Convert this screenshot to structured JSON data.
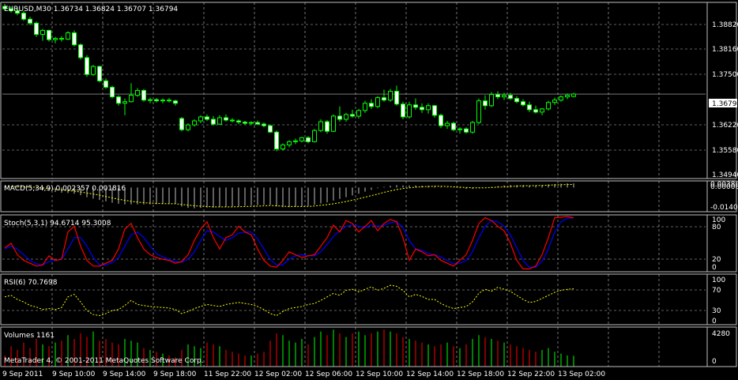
{
  "colors": {
    "background": "#000000",
    "grid": "#c0c0c0",
    "frame": "#c0c0c0",
    "text": "#ffffff",
    "bull": "#00ff00",
    "bear": "#ffffff",
    "macd_hist": "#c0c0c0",
    "macd_signal": "#ffff00",
    "stoch_main": "#ff0000",
    "stoch_signal": "#0000ff",
    "rsi": "#ffff00",
    "vol_up": "#00ff00",
    "vol_down": "#ff0000",
    "price_marker_bg": "#ffffff",
    "price_marker_text": "#000000"
  },
  "main": {
    "header": "EURUSD,M30  1.36734 1.36824 1.36707 1.36794",
    "current_price_label": "1.36794",
    "y_labels": [
      "1.38820",
      "1.38160",
      "1.37500",
      "1.36794",
      "1.36220",
      "1.35580",
      "1.34940"
    ]
  },
  "macd": {
    "header": "MACD(5,34,9) 0.002357 0.001816",
    "y_labels": [
      "0.00380",
      "0.00000",
      "-0.01400"
    ]
  },
  "stoch": {
    "header": "Stoch(5,3,1) 94.6714 95.3008",
    "y_labels": [
      "100",
      "80",
      "20",
      "0"
    ]
  },
  "rsi": {
    "header": "RSI(6) 70.7698",
    "y_labels": [
      "100",
      "70",
      "30",
      "0"
    ]
  },
  "volumes": {
    "header": "Volumes 1161",
    "y_labels": [
      "4280",
      "0"
    ]
  },
  "footer": {
    "copyright": "MetaTrader 4, © 2001-2011 MetaQuotes Software Corp."
  },
  "time_axis": {
    "labels": [
      "9 Sep 2011",
      "9 Sep 10:00",
      "9 Sep 14:00",
      "9 Sep 18:00",
      "11 Sep 22:00",
      "12 Sep 02:00",
      "12 Sep 06:00",
      "12 Sep 10:00",
      "12 Sep 14:00",
      "12 Sep 18:00",
      "12 Sep 22:00",
      "13 Sep 02:00"
    ]
  },
  "chart_data": {
    "type": "candlestick",
    "symbol": "EURUSD",
    "timeframe": "M30",
    "ylim": [
      1.3468,
      1.3908
    ],
    "candles": [
      [
        1.3898,
        1.3904,
        1.3888,
        1.3892
      ],
      [
        1.3892,
        1.3898,
        1.3882,
        1.3887
      ],
      [
        1.3887,
        1.3894,
        1.3876,
        1.3881
      ],
      [
        1.3881,
        1.3886,
        1.3862,
        1.3866
      ],
      [
        1.3866,
        1.3872,
        1.3851,
        1.3856
      ],
      [
        1.3856,
        1.386,
        1.3822,
        1.3828
      ],
      [
        1.3828,
        1.3842,
        1.3812,
        1.3838
      ],
      [
        1.3838,
        1.384,
        1.381,
        1.3815
      ],
      [
        1.3815,
        1.3822,
        1.3806,
        1.3818
      ],
      [
        1.3818,
        1.3824,
        1.381,
        1.3816
      ],
      [
        1.3816,
        1.3836,
        1.3814,
        1.3832
      ],
      [
        1.3832,
        1.3838,
        1.3798,
        1.3802
      ],
      [
        1.3802,
        1.3806,
        1.3765,
        1.377
      ],
      [
        1.377,
        1.3776,
        1.3722,
        1.3728
      ],
      [
        1.3728,
        1.3752,
        1.3724,
        1.3748
      ],
      [
        1.3748,
        1.375,
        1.3708,
        1.3712
      ],
      [
        1.3712,
        1.3718,
        1.3692,
        1.3696
      ],
      [
        1.3696,
        1.37,
        1.3668,
        1.3672
      ],
      [
        1.3672,
        1.3676,
        1.365,
        1.3656
      ],
      [
        1.3656,
        1.3668,
        1.3626,
        1.366
      ],
      [
        1.366,
        1.3706,
        1.3658,
        1.3676
      ],
      [
        1.3676,
        1.3694,
        1.3672,
        1.3688
      ],
      [
        1.3688,
        1.3692,
        1.366,
        1.3664
      ],
      [
        1.3664,
        1.367,
        1.3656,
        1.3665
      ],
      [
        1.3665,
        1.3669,
        1.3658,
        1.3662
      ],
      [
        1.3662,
        1.3668,
        1.3656,
        1.3664
      ],
      [
        1.3664,
        1.3669,
        1.3658,
        1.3662
      ],
      [
        1.3662,
        1.3665,
        1.365,
        1.3656
      ],
      [
        1.3618,
        1.3622,
        1.3586,
        1.359
      ],
      [
        1.359,
        1.3606,
        1.3586,
        1.3602
      ],
      [
        1.3602,
        1.3616,
        1.3598,
        1.3612
      ],
      [
        1.3612,
        1.3626,
        1.3606,
        1.3622
      ],
      [
        1.3622,
        1.3628,
        1.3612,
        1.3616
      ],
      [
        1.3616,
        1.3624,
        1.36,
        1.3604
      ],
      [
        1.3604,
        1.3626,
        1.3602,
        1.362
      ],
      [
        1.362,
        1.3628,
        1.361,
        1.3614
      ],
      [
        1.3614,
        1.3619,
        1.3608,
        1.3612
      ],
      [
        1.3612,
        1.3616,
        1.3604,
        1.3609
      ],
      [
        1.3609,
        1.3612,
        1.3603,
        1.3606
      ],
      [
        1.3606,
        1.3611,
        1.3601,
        1.3608
      ],
      [
        1.3608,
        1.3613,
        1.3602,
        1.3604
      ],
      [
        1.3604,
        1.3608,
        1.3596,
        1.36
      ],
      [
        1.36,
        1.3603,
        1.3582,
        1.3584
      ],
      [
        1.3584,
        1.3588,
        1.3536,
        1.3542
      ],
      [
        1.3542,
        1.3556,
        1.3538,
        1.3552
      ],
      [
        1.3552,
        1.3564,
        1.3546,
        1.356
      ],
      [
        1.356,
        1.3568,
        1.3554,
        1.3562
      ],
      [
        1.3562,
        1.3572,
        1.3558,
        1.357
      ],
      [
        1.357,
        1.3574,
        1.3556,
        1.356
      ],
      [
        1.356,
        1.3592,
        1.3558,
        1.3588
      ],
      [
        1.3588,
        1.3616,
        1.3584,
        1.361
      ],
      [
        1.361,
        1.3614,
        1.358,
        1.3586
      ],
      [
        1.3586,
        1.3628,
        1.3584,
        1.3624
      ],
      [
        1.3624,
        1.3648,
        1.361,
        1.3616
      ],
      [
        1.3616,
        1.3632,
        1.361,
        1.3628
      ],
      [
        1.3628,
        1.364,
        1.362,
        1.3624
      ],
      [
        1.3624,
        1.3642,
        1.3618,
        1.3638
      ],
      [
        1.3638,
        1.3662,
        1.3632,
        1.3656
      ],
      [
        1.3656,
        1.3666,
        1.3642,
        1.3648
      ],
      [
        1.3648,
        1.3674,
        1.3644,
        1.367
      ],
      [
        1.367,
        1.369,
        1.366,
        1.3664
      ],
      [
        1.3664,
        1.3692,
        1.366,
        1.3686
      ],
      [
        1.3686,
        1.37,
        1.365,
        1.3654
      ],
      [
        1.3654,
        1.366,
        1.3616,
        1.3622
      ],
      [
        1.3622,
        1.366,
        1.3618,
        1.3652
      ],
      [
        1.3652,
        1.3668,
        1.364,
        1.3646
      ],
      [
        1.3646,
        1.3656,
        1.3632,
        1.364
      ],
      [
        1.364,
        1.3656,
        1.363,
        1.365
      ],
      [
        1.365,
        1.3652,
        1.362,
        1.3626
      ],
      [
        1.3626,
        1.363,
        1.3594,
        1.36
      ],
      [
        1.36,
        1.3612,
        1.3592,
        1.3606
      ],
      [
        1.3606,
        1.361,
        1.3586,
        1.359
      ],
      [
        1.359,
        1.3596,
        1.358,
        1.3592
      ],
      [
        1.3592,
        1.3596,
        1.358,
        1.3584
      ],
      [
        1.3584,
        1.3612,
        1.358,
        1.3608
      ],
      [
        1.3608,
        1.3668,
        1.3604,
        1.3662
      ],
      [
        1.3662,
        1.3676,
        1.364,
        1.365
      ],
      [
        1.365,
        1.3684,
        1.3646,
        1.3678
      ],
      [
        1.3678,
        1.3686,
        1.3666,
        1.3672
      ],
      [
        1.3672,
        1.3682,
        1.3664,
        1.3676
      ],
      [
        1.3676,
        1.3682,
        1.3664,
        1.3668
      ],
      [
        1.3668,
        1.3674,
        1.3656,
        1.366
      ],
      [
        1.366,
        1.3666,
        1.3648,
        1.3652
      ],
      [
        1.3652,
        1.366,
        1.3634,
        1.364
      ],
      [
        1.364,
        1.365,
        1.363,
        1.3634
      ],
      [
        1.3634,
        1.3644,
        1.3626,
        1.3642
      ],
      [
        1.3642,
        1.3662,
        1.3638,
        1.3658
      ],
      [
        1.3658,
        1.367,
        1.3652,
        1.3664
      ],
      [
        1.3664,
        1.3676,
        1.366,
        1.3672
      ],
      [
        1.3672,
        1.368,
        1.3666,
        1.3676
      ],
      [
        1.3673,
        1.3682,
        1.3671,
        1.3679
      ]
    ],
    "macd_hist": [
      0.0004,
      0.0004,
      0.0003,
      0.0002,
      0.0,
      -0.0008,
      -0.0014,
      -0.002,
      -0.0026,
      -0.003,
      -0.0032,
      -0.0036,
      -0.0044,
      -0.0056,
      -0.0064,
      -0.0072,
      -0.008,
      -0.0088,
      -0.0094,
      -0.0098,
      -0.0098,
      -0.0097,
      -0.0098,
      -0.0098,
      -0.0097,
      -0.0096,
      -0.0095,
      -0.0094,
      -0.011,
      -0.0118,
      -0.012,
      -0.0118,
      -0.0116,
      -0.0116,
      -0.0114,
      -0.0112,
      -0.011,
      -0.0108,
      -0.0106,
      -0.0104,
      -0.0102,
      -0.01,
      -0.01,
      -0.011,
      -0.0114,
      -0.0114,
      -0.0112,
      -0.011,
      -0.0106,
      -0.01,
      -0.0092,
      -0.0086,
      -0.0076,
      -0.0066,
      -0.0056,
      -0.0046,
      -0.0036,
      -0.0024,
      -0.0014,
      -0.0004,
      0.0004,
      0.001,
      0.0014,
      0.0012,
      0.0012,
      0.0012,
      0.001,
      0.001,
      0.0008,
      0.0004,
      0.0002,
      -0.0002,
      -0.0004,
      -0.0008,
      -0.0008,
      -0.0004,
      0.0,
      0.0004,
      0.0008,
      0.0012,
      0.0014,
      0.0014,
      0.0014,
      0.0012,
      0.0012,
      0.0014,
      0.0018,
      0.002,
      0.0022,
      0.0024,
      0.0024
    ],
    "macd_signal": [
      0.0006,
      0.0006,
      0.0005,
      0.0004,
      0.0003,
      0.0001,
      -0.0002,
      -0.0006,
      -0.001,
      -0.0014,
      -0.0018,
      -0.0022,
      -0.0026,
      -0.0032,
      -0.0038,
      -0.0044,
      -0.0052,
      -0.006,
      -0.0068,
      -0.0074,
      -0.008,
      -0.0084,
      -0.0088,
      -0.009,
      -0.0092,
      -0.0093,
      -0.0094,
      -0.0094,
      -0.0098,
      -0.0102,
      -0.0106,
      -0.0108,
      -0.011,
      -0.0112,
      -0.0112,
      -0.0112,
      -0.0112,
      -0.0111,
      -0.011,
      -0.0109,
      -0.0108,
      -0.0106,
      -0.0104,
      -0.0106,
      -0.0108,
      -0.011,
      -0.011,
      -0.011,
      -0.0109,
      -0.0107,
      -0.0103,
      -0.0099,
      -0.0094,
      -0.0088,
      -0.0081,
      -0.0073,
      -0.0065,
      -0.0056,
      -0.0047,
      -0.0038,
      -0.0028,
      -0.002,
      -0.0012,
      -0.0006,
      -0.0002,
      0.0002,
      0.0004,
      0.0006,
      0.0007,
      0.0007,
      0.0006,
      0.0004,
      0.0002,
      0.0,
      -0.0002,
      -0.0002,
      -0.0002,
      0.0,
      0.0002,
      0.0004,
      0.0006,
      0.0008,
      0.001,
      0.001,
      0.0011,
      0.0012,
      0.0013,
      0.0015,
      0.0016,
      0.0017,
      0.0018
    ],
    "stoch_main": [
      42,
      50,
      30,
      20,
      15,
      10,
      12,
      28,
      20,
      22,
      70,
      80,
      45,
      20,
      10,
      10,
      15,
      20,
      40,
      75,
      85,
      60,
      40,
      30,
      25,
      22,
      20,
      15,
      18,
      30,
      55,
      75,
      88,
      60,
      40,
      60,
      65,
      80,
      70,
      65,
      40,
      20,
      10,
      8,
      20,
      35,
      30,
      25,
      28,
      30,
      45,
      60,
      82,
      70,
      90,
      85,
      70,
      80,
      90,
      72,
      85,
      92,
      88,
      60,
      20,
      40,
      35,
      28,
      30,
      20,
      15,
      10,
      20,
      30,
      55,
      85,
      95,
      90,
      80,
      72,
      50,
      20,
      5,
      5,
      10,
      30,
      60,
      95,
      96,
      97,
      95
    ],
    "stoch_signal": [
      40,
      45,
      40,
      30,
      20,
      14,
      12,
      18,
      20,
      22,
      40,
      60,
      60,
      45,
      25,
      12,
      12,
      16,
      25,
      45,
      65,
      70,
      60,
      45,
      32,
      26,
      22,
      18,
      17,
      22,
      35,
      55,
      72,
      70,
      62,
      55,
      60,
      68,
      70,
      70,
      58,
      40,
      22,
      12,
      12,
      22,
      28,
      30,
      28,
      28,
      35,
      48,
      62,
      72,
      80,
      82,
      80,
      78,
      82,
      80,
      82,
      86,
      88,
      78,
      55,
      40,
      38,
      32,
      30,
      26,
      20,
      14,
      15,
      20,
      35,
      60,
      80,
      90,
      88,
      80,
      65,
      42,
      20,
      8,
      8,
      18,
      40,
      70,
      88,
      94,
      95
    ],
    "rsi": [
      55,
      58,
      50,
      45,
      38,
      35,
      30,
      32,
      30,
      34,
      55,
      60,
      45,
      28,
      20,
      18,
      22,
      28,
      30,
      38,
      48,
      40,
      38,
      36,
      35,
      34,
      33,
      30,
      22,
      26,
      32,
      36,
      40,
      38,
      36,
      40,
      42,
      44,
      42,
      40,
      36,
      30,
      22,
      18,
      26,
      32,
      34,
      36,
      40,
      42,
      48,
      55,
      62,
      58,
      68,
      70,
      65,
      70,
      75,
      68,
      72,
      78,
      76,
      68,
      55,
      60,
      56,
      50,
      50,
      42,
      36,
      32,
      34,
      36,
      45,
      62,
      70,
      66,
      74,
      70,
      66,
      58,
      50,
      44,
      46,
      52,
      58,
      64,
      68,
      70,
      71
    ],
    "volume": [
      1200,
      2200,
      1800,
      2600,
      2000,
      3000,
      2400,
      2200,
      2600,
      2800,
      3400,
      3000,
      3600,
      3200,
      3800,
      2800,
      3000,
      2600,
      2400,
      3000,
      2800,
      2600,
      2000,
      1800,
      1600,
      1400,
      1200,
      1000,
      1800,
      2400,
      2200,
      2000,
      2600,
      2400,
      2200,
      1800,
      1600,
      1400,
      1200,
      1200,
      1400,
      1600,
      2800,
      3600,
      3400,
      2800,
      2600,
      3000,
      2400,
      3200,
      3800,
      3400,
      4000,
      3600,
      3200,
      3600,
      3800,
      3400,
      3600,
      3800,
      4000,
      3800,
      3600,
      3200,
      3000,
      2800,
      2600,
      2400,
      2200,
      2400,
      2600,
      2200,
      2000,
      2400,
      3000,
      3400,
      3200,
      3000,
      2800,
      2600,
      2400,
      2200,
      2000,
      1800,
      1600,
      1800,
      2000,
      1600,
      1400,
      1200,
      1161
    ]
  }
}
